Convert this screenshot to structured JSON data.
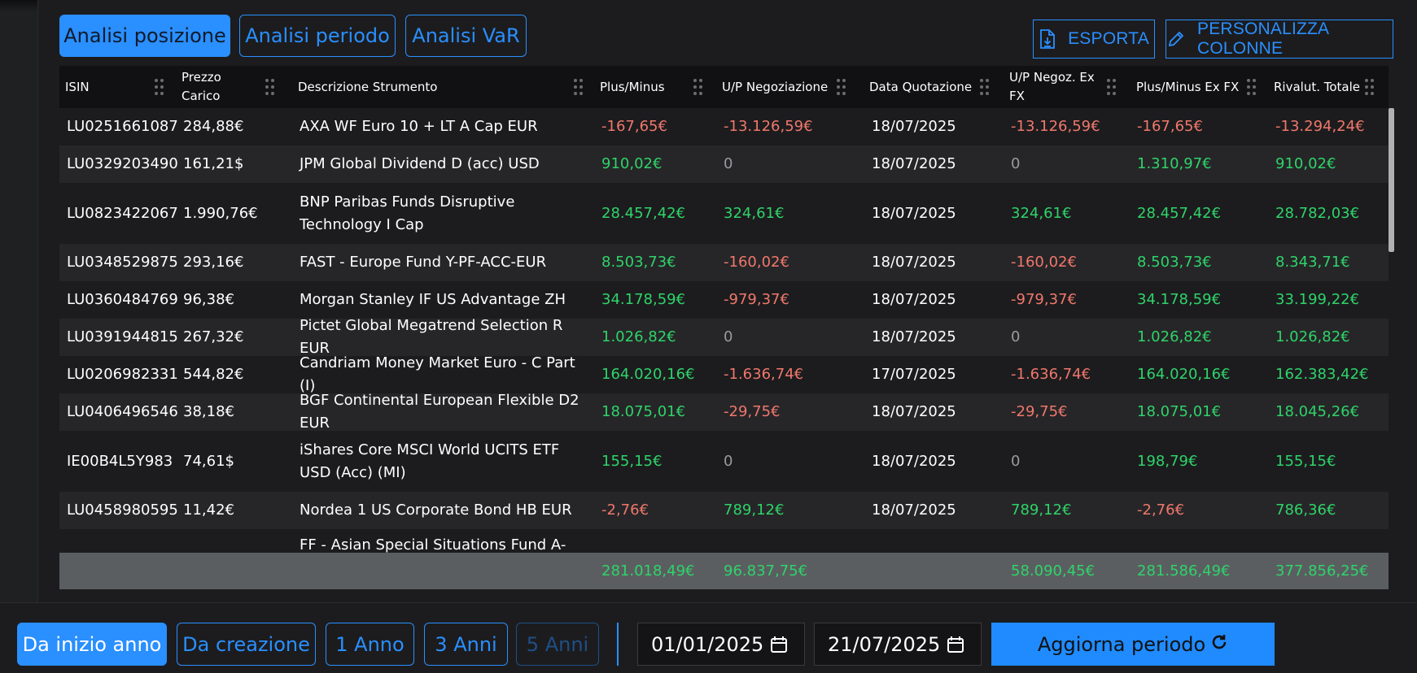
{
  "tabs": [
    {
      "label": "Analisi posizione",
      "active": true
    },
    {
      "label": "Analisi periodo",
      "active": false
    },
    {
      "label": "Analisi VaR",
      "active": false
    }
  ],
  "actions": {
    "export_label": "ESPORTA",
    "customize_label": "PERSONALIZZA COLONNE"
  },
  "table": {
    "headers": [
      "ISIN",
      "Prezzo Carico",
      "Descrizione Strumento",
      "Plus/Minus",
      "U/P Negoziazione",
      "Data Quotazione",
      "U/P Negoz. Ex FX",
      "Plus/Minus Ex FX",
      "Rivalut. Totale"
    ],
    "rows": [
      {
        "isin": "LU0251661087",
        "prezzo": "284,88€",
        "descr": "AXA WF Euro 10 + LT A Cap EUR",
        "pm": "-167,65€",
        "up": "-13.126,59€",
        "data": "18/07/2025",
        "upfx": "-13.126,59€",
        "pmfx": "-167,65€",
        "rival": "-13.294,24€"
      },
      {
        "isin": "LU0329203490",
        "prezzo": "161,21$",
        "descr": "JPM Global Dividend D (acc) USD",
        "pm": "910,02€",
        "up": "0",
        "data": "18/07/2025",
        "upfx": "0",
        "pmfx": "1.310,97€",
        "rival": "910,02€"
      },
      {
        "isin": "LU0823422067",
        "prezzo": "1.990,76€",
        "descr": "BNP Paribas Funds Disruptive Technology I Cap",
        "pm": "28.457,42€",
        "up": "324,61€",
        "data": "18/07/2025",
        "upfx": "324,61€",
        "pmfx": "28.457,42€",
        "rival": "28.782,03€"
      },
      {
        "isin": "LU0348529875",
        "prezzo": "293,16€",
        "descr": "FAST - Europe Fund Y-PF-ACC-EUR",
        "pm": "8.503,73€",
        "up": "-160,02€",
        "data": "18/07/2025",
        "upfx": "-160,02€",
        "pmfx": "8.503,73€",
        "rival": "8.343,71€"
      },
      {
        "isin": "LU0360484769",
        "prezzo": "96,38€",
        "descr": "Morgan Stanley IF US Advantage ZH",
        "pm": "34.178,59€",
        "up": "-979,37€",
        "data": "18/07/2025",
        "upfx": "-979,37€",
        "pmfx": "34.178,59€",
        "rival": "33.199,22€"
      },
      {
        "isin": "LU0391944815",
        "prezzo": "267,32€",
        "descr": "Pictet Global Megatrend Selection R EUR",
        "pm": "1.026,82€",
        "up": "0",
        "data": "18/07/2025",
        "upfx": "0",
        "pmfx": "1.026,82€",
        "rival": "1.026,82€"
      },
      {
        "isin": "LU0206982331",
        "prezzo": "544,82€",
        "descr": "Candriam Money Market Euro - C Part (I)",
        "pm": "164.020,16€",
        "up": "-1.636,74€",
        "data": "17/07/2025",
        "upfx": "-1.636,74€",
        "pmfx": "164.020,16€",
        "rival": "162.383,42€"
      },
      {
        "isin": "LU0406496546",
        "prezzo": "38,18€",
        "descr": "BGF Continental European Flexible D2 EUR",
        "pm": "18.075,01€",
        "up": "-29,75€",
        "data": "18/07/2025",
        "upfx": "-29,75€",
        "pmfx": "18.075,01€",
        "rival": "18.045,26€"
      },
      {
        "isin": "IE00B4L5Y983",
        "prezzo": "74,61$",
        "descr": "iShares Core MSCI World UCITS ETF USD (Acc) (MI)",
        "pm": "155,15€",
        "up": "0",
        "data": "18/07/2025",
        "upfx": "0",
        "pmfx": "198,79€",
        "rival": "155,15€"
      },
      {
        "isin": "LU0458980595",
        "prezzo": "11,42€",
        "descr": "Nordea 1 US Corporate Bond HB EUR",
        "pm": "-2,76€",
        "up": "789,12€",
        "data": "18/07/2025",
        "upfx": "789,12€",
        "pmfx": "-2,76€",
        "rival": "786,36€"
      },
      {
        "isin": "",
        "prezzo": "",
        "descr": "FF - Asian Special Situations Fund A-ACC-",
        "pm": "",
        "up": "",
        "data": "",
        "upfx": "",
        "pmfx": "",
        "rival": ""
      }
    ],
    "totals": {
      "pm": "281.018,49€",
      "up": "96.837,75€",
      "upfx": "58.090,45€",
      "pmfx": "281.586,49€",
      "rival": "377.856,25€"
    }
  },
  "periods": [
    {
      "label": "Da inizio anno",
      "state": "active"
    },
    {
      "label": "Da creazione",
      "state": "normal"
    },
    {
      "label": "1 Anno",
      "state": "normal"
    },
    {
      "label": "3 Anni",
      "state": "normal"
    },
    {
      "label": "5 Anni",
      "state": "disabled"
    }
  ],
  "dates": {
    "start": "01/01/2025",
    "end": "21/07/2025"
  },
  "update_label": "Aggiorna periodo",
  "colors": {
    "accent": "#2a8fff",
    "positive": "#2fd36a",
    "negative": "#f0776c",
    "neutral": "#9a9a9e"
  }
}
